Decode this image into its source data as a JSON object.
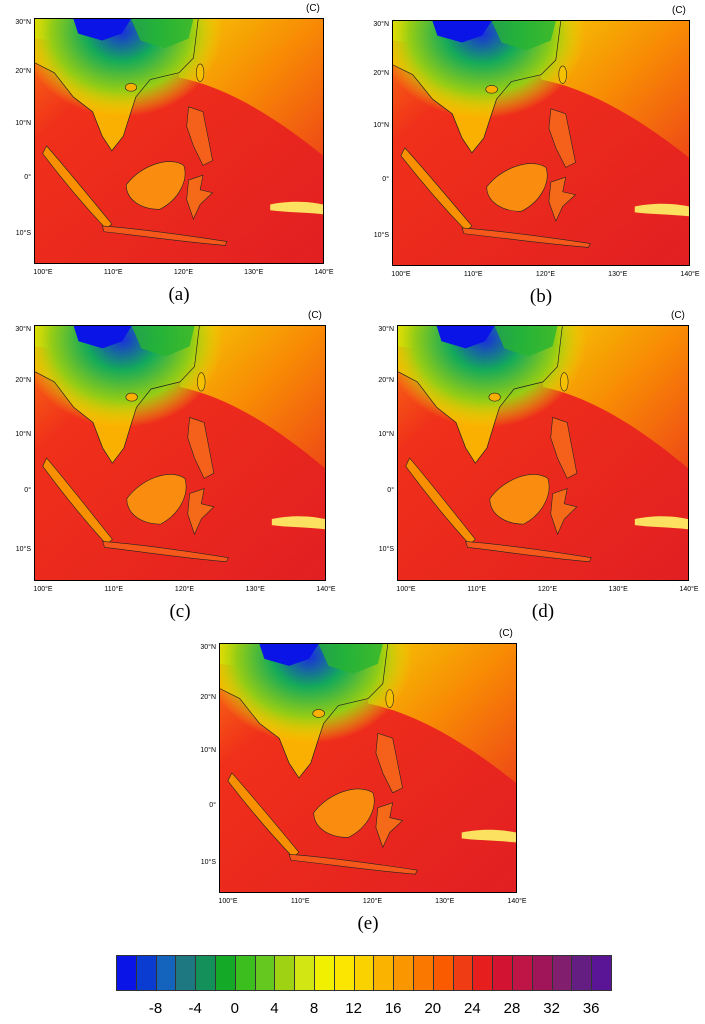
{
  "unit_label": "(C)",
  "lat_labels": [
    "30°N",
    "20°N",
    "10°N",
    "0°",
    "10°S"
  ],
  "lon_labels": [
    "100°E",
    "110°E",
    "120°E",
    "130°E",
    "140°E"
  ],
  "panels": [
    {
      "caption": "(a)"
    },
    {
      "caption": "(b)"
    },
    {
      "caption": "(c)"
    },
    {
      "caption": "(d)"
    },
    {
      "caption": "(e)"
    }
  ],
  "colorbar": {
    "colors": [
      "#0a14e6",
      "#0a3cd2",
      "#1464be",
      "#1e7882",
      "#14915a",
      "#14aa28",
      "#3cbe1e",
      "#64c81e",
      "#a0d214",
      "#d2e614",
      "#f0f000",
      "#fae600",
      "#fad200",
      "#fab400",
      "#fa9600",
      "#fa7800",
      "#fa5a00",
      "#f03c14",
      "#e61e1e",
      "#d21432",
      "#be1446",
      "#a0145a",
      "#821e6e",
      "#641e82",
      "#5a1496"
    ],
    "tick_labels": [
      "-8",
      "-4",
      "0",
      "4",
      "8",
      "12",
      "16",
      "20",
      "24",
      "28",
      "32",
      "36"
    ]
  }
}
